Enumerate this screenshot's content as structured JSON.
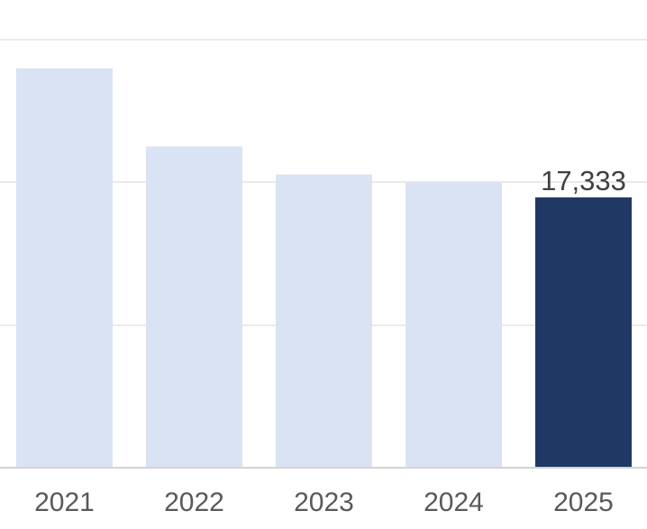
{
  "chart_data": {
    "type": "bar",
    "title": "",
    "xlabel": "",
    "ylabel": "",
    "categories": [
      "2021",
      "2022",
      "2023",
      "2024",
      "2025"
    ],
    "values": [
      25600,
      20600,
      18800,
      18300,
      17333
    ],
    "data_labels": [
      "",
      "",
      "",
      "",
      "17,333"
    ],
    "ylim": [
      0,
      27500
    ],
    "gridlines": [
      9150,
      18300,
      27450
    ],
    "grid": true,
    "legend": "none",
    "colors": {
      "default_bar": "#dae3f3",
      "highlight_bar": "#203864",
      "highlight_index": 4
    }
  }
}
